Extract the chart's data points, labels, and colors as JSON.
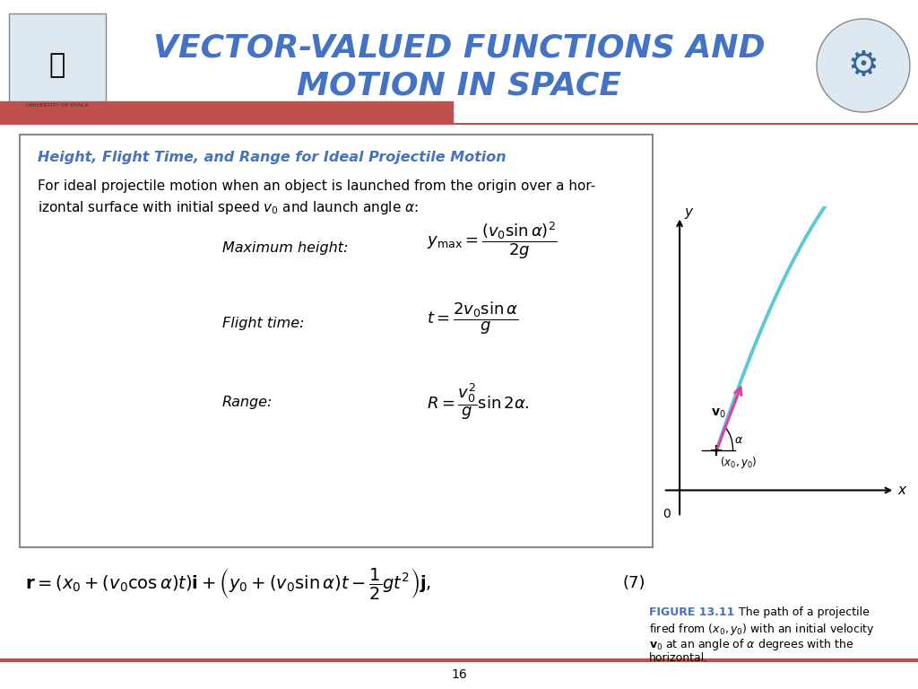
{
  "title_line1": "VECTOR-VALUED FUNCTIONS AND",
  "title_line2": "MOTION IN SPACE",
  "title_color": "#4472C4",
  "slide_number": "16",
  "header_bar_color": "#C0504D",
  "header_line_color": "#C0504D",
  "box_title": "Height, Flight Time, and Range for Ideal Projectile Motion",
  "box_title_color": "#4472C4",
  "figure_caption_bold": "FIGURE 13.11",
  "figure_caption_color": "#4472C4",
  "curve_color": "#5BC8D8",
  "arrow_color": "#E040A0",
  "background_color": "#FFFFFF"
}
